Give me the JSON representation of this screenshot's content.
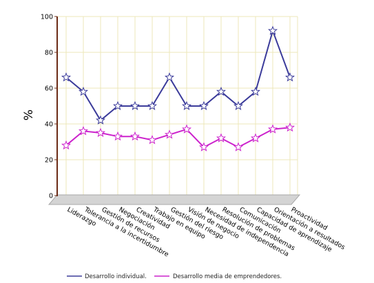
{
  "chart_data": {
    "type": "line",
    "title": "",
    "xlabel": "",
    "ylabel": "%",
    "ylim": [
      0,
      100
    ],
    "yticks": [
      "0",
      "20",
      "40",
      "60",
      "80",
      "100"
    ],
    "grid": true,
    "legend_position": "bottom",
    "categories": [
      "Liderazgo",
      "Tolerancia a la incertidumbre",
      "Gestión de recursos",
      "Negociación",
      "Creatividad",
      "Trabajo en equipo",
      "Gestión del riesgo",
      "Visión de negocio",
      "Necesidad de independencia",
      "Resolución de problemas",
      "Comunicación",
      "Capacidad de aprendizaje",
      "Orientación a resultados",
      "Proactividad"
    ],
    "series": [
      {
        "name": "Desarrollo individual.",
        "color": "#3b3b9a",
        "values": [
          66,
          58,
          42,
          50,
          50,
          50,
          66,
          50,
          50,
          58,
          50,
          58,
          92,
          66
        ]
      },
      {
        "name": "Desarrollo media de emprendedores.",
        "color": "#cc22cc",
        "values": [
          28,
          36,
          35,
          33,
          33,
          31,
          34,
          37,
          27,
          32,
          27,
          32,
          37,
          38
        ]
      }
    ]
  }
}
